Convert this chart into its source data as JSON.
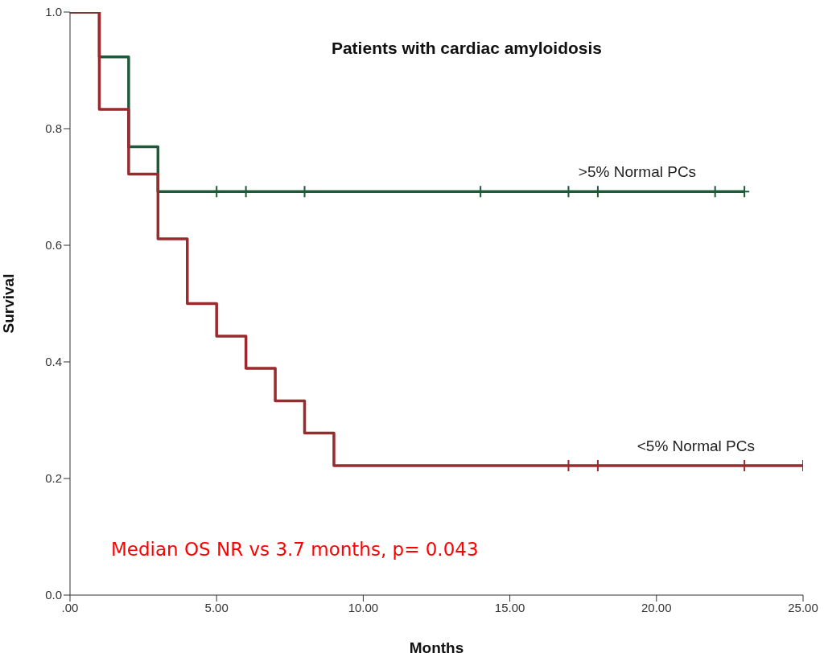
{
  "chart_data": {
    "type": "step",
    "title": "Patients with cardiac amyloidosis",
    "xlabel": "Months",
    "ylabel": "Survival",
    "annotations": [
      "Median OS NR vs 3.7 months, p= 0.043"
    ],
    "series": [
      {
        "name": ">5% Normal PCs",
        "color": "#1e5a38",
        "x": [
          0,
          1,
          2,
          3,
          23
        ],
        "values": [
          1,
          0.923,
          0.769,
          0.692,
          0.692
        ]
      },
      {
        "name": "<5% Normal PCs",
        "color": "#9a2a2e",
        "x": [
          0,
          1,
          2,
          3,
          4,
          5,
          6,
          7,
          8,
          9,
          25
        ],
        "values": [
          1,
          0.833,
          0.722,
          0.611,
          0.5,
          0.444,
          0.389,
          0.333,
          0.278,
          0.222,
          0.222
        ]
      },
      {
        "type": "scatter",
        "color": "#1e5a38",
        "marker": "cross",
        "x": [
          5,
          6,
          8,
          14,
          17,
          18,
          22,
          23
        ],
        "values": [
          0.692,
          0.692,
          0.692,
          0.692,
          0.692,
          0.692,
          0.692,
          0.692
        ]
      },
      {
        "type": "scatter",
        "color": "#9a2a2e",
        "marker": "cross",
        "x": [
          17,
          18,
          23,
          25
        ],
        "values": [
          0.222,
          0.222,
          0.222,
          0.222
        ]
      }
    ],
    "xlim": [
      0,
      25
    ],
    "xticks": [
      {
        "value": 0,
        "label": ".00"
      },
      {
        "value": 5,
        "label": "5.00"
      },
      {
        "value": 10,
        "label": "10.00"
      },
      {
        "value": 15,
        "label": "15.00"
      },
      {
        "value": 20,
        "label": "20.00"
      },
      {
        "value": 25,
        "label": "25.00"
      }
    ],
    "ylim": [
      0,
      1
    ],
    "yticks": [
      {
        "value": 0,
        "label": "0.0"
      },
      {
        "value": 0.2,
        "label": "0.2"
      },
      {
        "value": 0.4,
        "label": "0.4"
      },
      {
        "value": 0.6,
        "label": "0.6"
      },
      {
        "value": 0.8,
        "label": "0.8"
      },
      {
        "value": 1,
        "label": "1.0"
      }
    ],
    "grid": false,
    "legend": false,
    "line_style": "solid"
  }
}
